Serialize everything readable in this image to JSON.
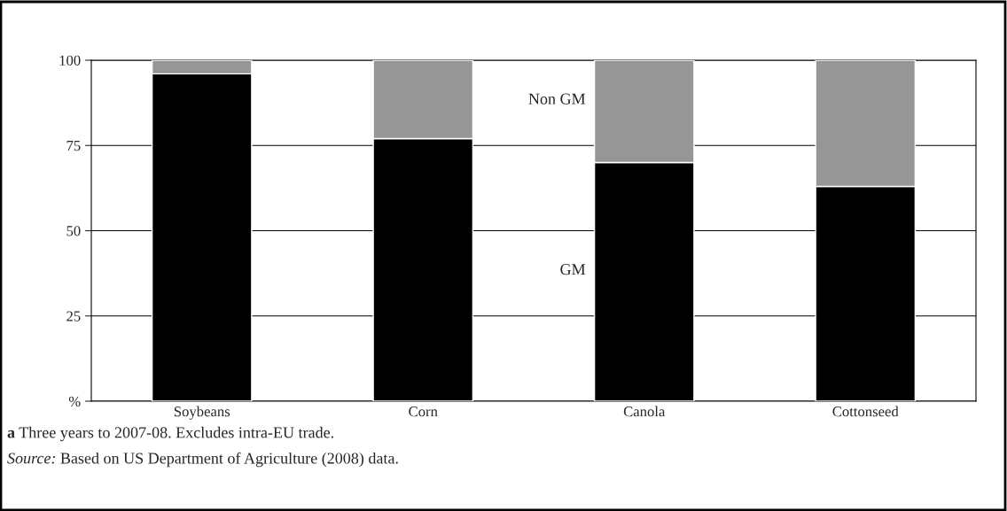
{
  "chart_data": {
    "type": "bar",
    "stacked": true,
    "categories": [
      "Soybeans",
      "Corn",
      "Canola",
      "Cottonseed"
    ],
    "series": [
      {
        "name": "GM",
        "color": "#000000",
        "values": [
          96,
          77,
          70,
          63
        ]
      },
      {
        "name": "Non GM",
        "color": "#969696",
        "values": [
          4,
          23,
          30,
          37
        ]
      }
    ],
    "ylim": [
      0,
      100
    ],
    "yticks": [
      {
        "value": 0,
        "label": "%"
      },
      25,
      50,
      75,
      100
    ],
    "grid": "y",
    "legend": false,
    "annotations": [
      "a Three years to 2007-08. Excludes intra-EU trade.",
      "Source: Based on US Department of Agriculture (2008) data."
    ]
  }
}
